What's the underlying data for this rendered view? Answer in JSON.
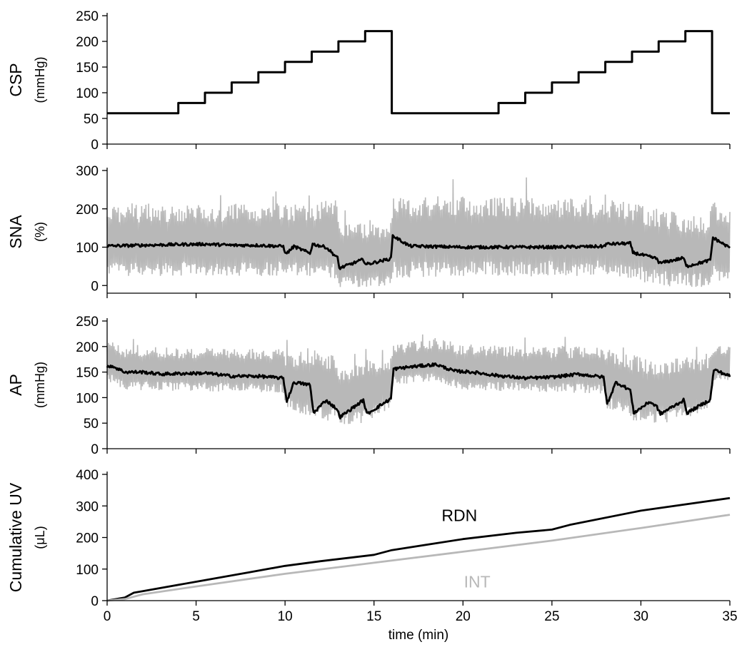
{
  "colors": {
    "primary": "#000000",
    "secondary": "#b8b8b8"
  },
  "chart_data": [
    {
      "type": "line",
      "panel": "CSP",
      "ylabel": "CSP",
      "yunit": "(mmHg)",
      "ylim": [
        0,
        250
      ],
      "yticks": [
        0,
        50,
        100,
        150,
        200,
        250
      ],
      "xlim": [
        0,
        35
      ],
      "series": [
        {
          "style": "step",
          "x": [
            0,
            4,
            5.5,
            7,
            8.5,
            10,
            11.5,
            13,
            14.5,
            16,
            22,
            23.5,
            25,
            26.5,
            28,
            29.5,
            31,
            32.5,
            34,
            35
          ],
          "y": [
            60,
            80,
            100,
            120,
            140,
            160,
            180,
            200,
            220,
            60,
            80,
            100,
            120,
            140,
            160,
            180,
            200,
            220,
            60,
            60
          ]
        }
      ]
    },
    {
      "type": "line",
      "panel": "SNA",
      "ylabel": "SNA",
      "yunit": "(%)",
      "ylim": [
        -20,
        300
      ],
      "yticks": [
        0,
        100,
        200,
        300
      ],
      "xlim": [
        0,
        35
      ],
      "series": [
        {
          "role": "mean",
          "x": [
            0,
            4,
            5.5,
            7,
            8.5,
            9.9,
            10.05,
            10.5,
            11.4,
            11.55,
            12.3,
            12.95,
            13.05,
            14.4,
            14.55,
            15.95,
            16.05,
            17,
            20,
            25,
            27.9,
            28.05,
            29.4,
            29.55,
            30.9,
            31.05,
            32.4,
            32.55,
            33.9,
            34.05,
            35
          ],
          "y": [
            103,
            107,
            108,
            105,
            105,
            102,
            82,
            102,
            84,
            108,
            100,
            72,
            45,
            68,
            55,
            70,
            130,
            103,
            100,
            100,
            102,
            108,
            110,
            86,
            70,
            58,
            72,
            50,
            66,
            125,
            98
          ]
        },
        {
          "role": "range",
          "x": [
            0,
            9.9,
            10.05,
            11.5,
            12.9,
            13.05,
            14.5,
            15.95,
            16.05,
            28,
            29.5,
            31,
            32.5,
            33.9,
            34.05,
            35
          ],
          "ylow": [
            25,
            25,
            22,
            20,
            15,
            -5,
            -5,
            0,
            20,
            25,
            15,
            0,
            -5,
            -5,
            10,
            15
          ],
          "yhigh": [
            210,
            215,
            210,
            215,
            230,
            170,
            160,
            165,
            235,
            225,
            215,
            200,
            185,
            175,
            230,
            200
          ]
        }
      ]
    },
    {
      "type": "line",
      "panel": "AP",
      "ylabel": "AP",
      "yunit": "(mmHg)",
      "ylim": [
        0,
        250
      ],
      "yticks": [
        0,
        50,
        100,
        150,
        200,
        250
      ],
      "xlim": [
        0,
        35
      ],
      "series": [
        {
          "role": "mean",
          "x": [
            0,
            0.2,
            1,
            2,
            3,
            4,
            5.5,
            7,
            8.5,
            9.9,
            10.1,
            10.5,
            11.4,
            11.6,
            12.3,
            12.9,
            13.1,
            14.4,
            14.6,
            15.95,
            16.1,
            17,
            18.5,
            19.5,
            20.5,
            22,
            23.5,
            25,
            26.5,
            27.9,
            28.1,
            28.6,
            29.4,
            29.6,
            30.5,
            30.9,
            31.1,
            32.4,
            32.6,
            33.9,
            34.1,
            35
          ],
          "y": [
            158,
            163,
            150,
            150,
            146,
            147,
            148,
            142,
            142,
            138,
            93,
            130,
            125,
            70,
            95,
            78,
            62,
            95,
            68,
            98,
            156,
            160,
            165,
            152,
            150,
            143,
            138,
            140,
            146,
            140,
            88,
            130,
            115,
            70,
            92,
            82,
            68,
            95,
            70,
            96,
            155,
            142
          ]
        },
        {
          "role": "range",
          "x": [
            0,
            0.1,
            1,
            9.9,
            10.05,
            11.5,
            12.9,
            13.05,
            14.5,
            15.95,
            16.05,
            18.5,
            20,
            25,
            27.9,
            28.05,
            29.5,
            31,
            32.5,
            33.9,
            34.05,
            35
          ],
          "ylow": [
            130,
            130,
            115,
            110,
            80,
            55,
            55,
            45,
            50,
            80,
            125,
            130,
            115,
            110,
            108,
            80,
            55,
            50,
            55,
            75,
            130,
            135
          ],
          "yhigh": [
            205,
            218,
            200,
            195,
            185,
            200,
            180,
            160,
            175,
            180,
            205,
            218,
            205,
            200,
            200,
            195,
            185,
            170,
            180,
            180,
            205,
            200
          ]
        }
      ]
    },
    {
      "type": "line",
      "panel": "Cumulative UV",
      "ylabel": "Cumulative UV",
      "yunit": "(μL)",
      "ylim": [
        0,
        400
      ],
      "yticks": [
        0,
        100,
        200,
        300,
        400
      ],
      "xlim": [
        0,
        35
      ],
      "xticks": [
        0,
        5,
        10,
        15,
        20,
        25,
        30,
        35
      ],
      "xlabel": "time (min)",
      "series": [
        {
          "name": "RDN",
          "x": [
            0,
            1,
            1.5,
            2,
            5,
            8,
            10,
            12,
            15,
            16,
            20,
            23,
            25,
            26,
            30,
            35
          ],
          "y": [
            0,
            10,
            25,
            30,
            60,
            90,
            110,
            125,
            145,
            160,
            195,
            215,
            225,
            240,
            285,
            325
          ]
        },
        {
          "name": "INT",
          "x": [
            0,
            1,
            2,
            5,
            10,
            15,
            20,
            25,
            30,
            35
          ],
          "y": [
            0,
            5,
            20,
            45,
            85,
            120,
            155,
            190,
            230,
            272
          ]
        }
      ]
    }
  ]
}
